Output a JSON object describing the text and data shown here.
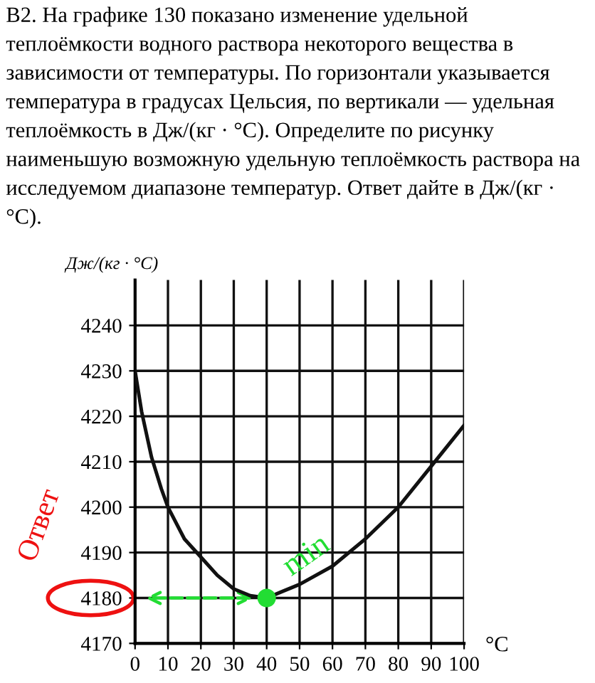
{
  "chart_data": {
    "type": "line",
    "title": "B2. На графике 130 показано изменение удельной теплоёмкости водного раствора некоторого вещества в зависимости от температуры. По горизонтали указывается температура в градусах Цельсия, по вертикали — удельная теплоёмкость в Дж/(кг · °C). Определите по рисунку наименьшую возможную удельную теплоёмкость раствора на исследуемом диапазоне температур. Ответ дайте в Дж/(кг · °C).",
    "xlabel": "°C",
    "ylabel": "Дж/(кг · °C)",
    "series": [
      {
        "color": "#111111",
        "marker": "none",
        "x": [
          0,
          2,
          5,
          8,
          10,
          15,
          20,
          25,
          30,
          35,
          40,
          45,
          50,
          60,
          70,
          80,
          90,
          100
        ],
        "values": [
          4230,
          4221,
          4211,
          4204,
          4200,
          4193,
          4189,
          4185,
          4182,
          4180.5,
          4180,
          4181.5,
          4183,
          4187,
          4193,
          4200,
          4209,
          4218
        ]
      },
      {
        "type": "scatter",
        "marker": "circle",
        "color": "#22dd33",
        "x": [
          40
        ],
        "values": [
          4180
        ]
      }
    ],
    "annotations": [
      {
        "text": "min",
        "x": 40,
        "y": 4180
      },
      "Ответ"
    ],
    "xlim": [
      0,
      100
    ],
    "ylim": [
      4170,
      4250
    ],
    "xticks": [
      0,
      10,
      20,
      30,
      40,
      50,
      60,
      70,
      80,
      90,
      100
    ],
    "yticks": [
      4170,
      4180,
      4190,
      4200,
      4210,
      4220,
      4230,
      4240
    ],
    "grid": true,
    "line_style": "solid"
  }
}
